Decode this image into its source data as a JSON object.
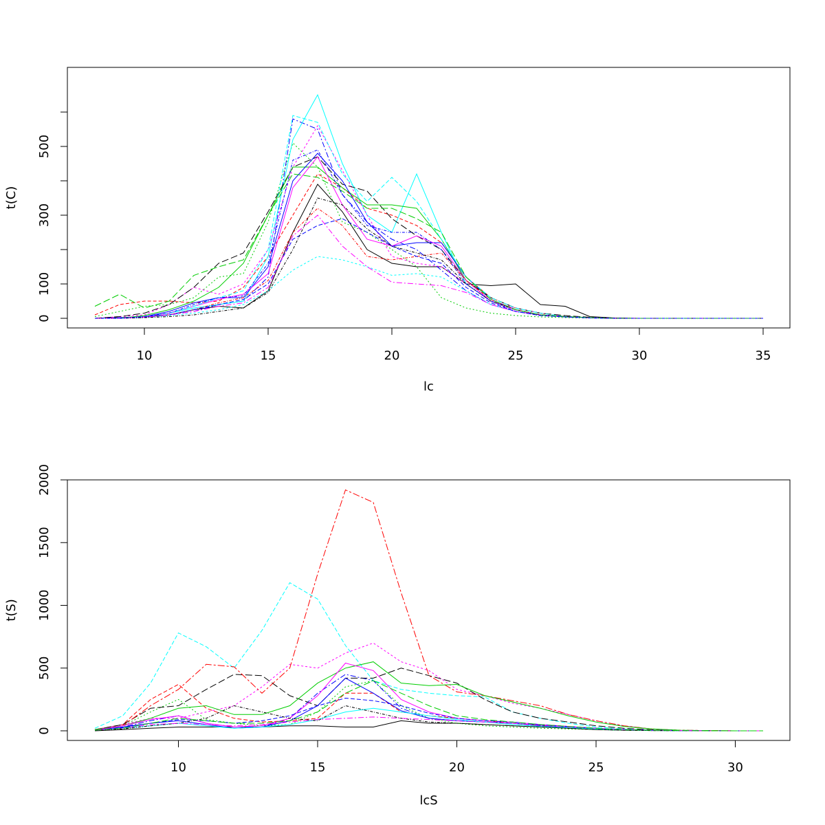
{
  "chart_data": [
    {
      "type": "line",
      "xlabel": "lc",
      "ylabel": "t(C)",
      "xlim": [
        8,
        35
      ],
      "ylim": [
        0,
        650
      ],
      "x_ticks": [
        "10",
        "15",
        "20",
        "25",
        "30",
        "35"
      ],
      "y_ticks": [
        "0",
        "100",
        "300",
        "500"
      ],
      "grid": false,
      "x": [
        8,
        9,
        10,
        11,
        12,
        13,
        14,
        15,
        16,
        17,
        18,
        19,
        20,
        21,
        22,
        23,
        24,
        25,
        26,
        27,
        28,
        29,
        30,
        31,
        32,
        33,
        34,
        35
      ],
      "series": [
        {
          "color": "#000000",
          "dash": "solid",
          "values": [
            0,
            2,
            5,
            10,
            25,
            35,
            30,
            80,
            250,
            390,
            310,
            200,
            160,
            150,
            150,
            100,
            95,
            100,
            40,
            35,
            5,
            1,
            0,
            0,
            0,
            0,
            0,
            0
          ]
        },
        {
          "color": "#ff0000",
          "dash": "5,3",
          "values": [
            10,
            40,
            50,
            50,
            45,
            50,
            90,
            180,
            300,
            420,
            380,
            320,
            300,
            270,
            220,
            120,
            60,
            30,
            15,
            5,
            2,
            0,
            0,
            0,
            0,
            0,
            0,
            0
          ]
        },
        {
          "color": "#00cd00",
          "dash": "2,3",
          "values": [
            5,
            20,
            35,
            40,
            60,
            120,
            130,
            280,
            510,
            440,
            280,
            250,
            200,
            150,
            60,
            30,
            15,
            8,
            4,
            2,
            1,
            0,
            0,
            0,
            0,
            0,
            0,
            0
          ]
        },
        {
          "color": "#0000ff",
          "dash": "8,3,2,3",
          "values": [
            0,
            2,
            5,
            10,
            20,
            40,
            50,
            120,
            580,
            550,
            360,
            280,
            230,
            200,
            140,
            80,
            40,
            20,
            10,
            5,
            2,
            0,
            0,
            0,
            0,
            0,
            0,
            0
          ]
        },
        {
          "color": "#00ffff",
          "dash": "solid",
          "values": [
            0,
            0,
            5,
            15,
            30,
            40,
            50,
            180,
            520,
            650,
            450,
            300,
            250,
            420,
            250,
            100,
            50,
            25,
            10,
            5,
            2,
            0,
            0,
            0,
            0,
            0,
            0,
            0
          ]
        },
        {
          "color": "#ff00ff",
          "dash": "3,3",
          "values": [
            0,
            5,
            10,
            40,
            90,
            70,
            100,
            200,
            440,
            560,
            430,
            300,
            180,
            160,
            150,
            100,
            50,
            30,
            15,
            5,
            2,
            0,
            0,
            0,
            0,
            0,
            0,
            0
          ]
        },
        {
          "color": "#000000",
          "dash": "10,4",
          "values": [
            0,
            5,
            15,
            40,
            90,
            160,
            190,
            310,
            440,
            470,
            390,
            370,
            290,
            240,
            200,
            110,
            60,
            30,
            15,
            8,
            3,
            0,
            0,
            0,
            0,
            0,
            0,
            0
          ]
        },
        {
          "color": "#00cd00",
          "dash": "solid",
          "values": [
            0,
            0,
            8,
            25,
            50,
            90,
            160,
            300,
            440,
            440,
            380,
            330,
            330,
            320,
            230,
            110,
            50,
            25,
            10,
            5,
            2,
            0,
            0,
            0,
            0,
            0,
            0,
            0
          ]
        },
        {
          "color": "#0000ff",
          "dash": "solid",
          "values": [
            0,
            0,
            5,
            20,
            45,
            60,
            60,
            150,
            400,
            480,
            400,
            280,
            210,
            220,
            220,
            120,
            55,
            25,
            10,
            5,
            2,
            0,
            0,
            0,
            0,
            0,
            0,
            0
          ]
        },
        {
          "color": "#00ffff",
          "dash": "3,3",
          "values": [
            0,
            0,
            2,
            8,
            15,
            25,
            40,
            80,
            140,
            180,
            170,
            150,
            125,
            130,
            120,
            80,
            40,
            20,
            10,
            5,
            2,
            0,
            0,
            0,
            0,
            0,
            0,
            0
          ]
        },
        {
          "color": "#ff00ff",
          "dash": "solid",
          "values": [
            0,
            0,
            5,
            15,
            35,
            55,
            70,
            130,
            380,
            470,
            330,
            230,
            210,
            240,
            210,
            110,
            50,
            25,
            10,
            5,
            2,
            0,
            0,
            0,
            0,
            0,
            0,
            0
          ]
        },
        {
          "color": "#ff0000",
          "dash": "4,2,1,2",
          "values": [
            0,
            0,
            3,
            10,
            25,
            45,
            60,
            110,
            250,
            320,
            270,
            180,
            170,
            180,
            190,
            110,
            55,
            25,
            10,
            5,
            2,
            0,
            0,
            0,
            0,
            0,
            0,
            0
          ]
        },
        {
          "color": "#0000ff",
          "dash": "6,3",
          "values": [
            0,
            0,
            3,
            10,
            25,
            40,
            55,
            100,
            230,
            270,
            290,
            250,
            210,
            180,
            160,
            90,
            45,
            20,
            8,
            4,
            1,
            0,
            0,
            0,
            0,
            0,
            0,
            0
          ]
        },
        {
          "color": "#00ffff",
          "dash": "6,3",
          "values": [
            0,
            0,
            5,
            15,
            35,
            60,
            80,
            200,
            590,
            570,
            420,
            340,
            410,
            340,
            230,
            120,
            60,
            30,
            15,
            5,
            2,
            0,
            0,
            0,
            0,
            0,
            0,
            0
          ]
        },
        {
          "color": "#ff00ff",
          "dash": "8,3,2,3",
          "values": [
            0,
            0,
            3,
            10,
            20,
            35,
            45,
            90,
            240,
            300,
            210,
            150,
            105,
            100,
            95,
            75,
            40,
            20,
            10,
            5,
            2,
            0,
            0,
            0,
            0,
            0,
            0,
            0
          ]
        },
        {
          "color": "#000000",
          "dash": "4,2,1,2",
          "values": [
            0,
            0,
            2,
            5,
            10,
            20,
            30,
            75,
            200,
            350,
            330,
            260,
            210,
            190,
            170,
            100,
            50,
            25,
            10,
            5,
            2,
            0,
            0,
            0,
            0,
            0,
            0,
            0
          ]
        },
        {
          "color": "#00cd00",
          "dash": "10,4",
          "values": [
            35,
            70,
            30,
            50,
            125,
            150,
            170,
            300,
            420,
            410,
            370,
            320,
            320,
            290,
            250,
            120,
            55,
            25,
            10,
            5,
            2,
            0,
            0,
            0,
            0,
            0,
            0,
            0
          ]
        },
        {
          "color": "#0000ff",
          "dash": "4,2,1,2",
          "values": [
            0,
            0,
            5,
            15,
            40,
            60,
            65,
            160,
            460,
            490,
            360,
            270,
            250,
            250,
            200,
            100,
            50,
            20,
            8,
            4,
            1,
            0,
            0,
            0,
            0,
            0,
            0,
            0
          ]
        }
      ]
    },
    {
      "type": "line",
      "xlabel": "lcS",
      "ylabel": "t(S)",
      "xlim": [
        7,
        31
      ],
      "ylim": [
        0,
        2000
      ],
      "x_ticks": [
        "10",
        "15",
        "20",
        "25",
        "30"
      ],
      "y_ticks": [
        "0",
        "500",
        "1000",
        "1500",
        "2000"
      ],
      "grid": false,
      "x": [
        7,
        8,
        9,
        10,
        11,
        12,
        13,
        14,
        15,
        16,
        17,
        18,
        19,
        20,
        21,
        22,
        23,
        24,
        25,
        26,
        27,
        28,
        29,
        30,
        31
      ],
      "series": [
        {
          "color": "#000000",
          "dash": "solid",
          "values": [
            0,
            10,
            20,
            30,
            30,
            30,
            30,
            40,
            40,
            30,
            30,
            80,
            60,
            60,
            50,
            40,
            30,
            20,
            10,
            5,
            2,
            1,
            0,
            0,
            0
          ]
        },
        {
          "color": "#ff0000",
          "dash": "6,3",
          "values": [
            10,
            50,
            250,
            370,
            180,
            100,
            70,
            80,
            100,
            300,
            300,
            150,
            120,
            100,
            80,
            60,
            40,
            30,
            20,
            10,
            5,
            2,
            0,
            0,
            0
          ]
        },
        {
          "color": "#00cd00",
          "dash": "2,3",
          "values": [
            5,
            40,
            150,
            250,
            90,
            60,
            40,
            50,
            150,
            350,
            400,
            200,
            100,
            60,
            40,
            30,
            20,
            15,
            10,
            5,
            2,
            1,
            0,
            0,
            0
          ]
        },
        {
          "color": "#0000ff",
          "dash": "8,3,2,3",
          "values": [
            5,
            30,
            80,
            120,
            60,
            30,
            30,
            100,
            300,
            450,
            400,
            180,
            100,
            80,
            70,
            60,
            40,
            30,
            20,
            10,
            5,
            2,
            0,
            0,
            0
          ]
        },
        {
          "color": "#00ffff",
          "dash": "6,3",
          "values": [
            20,
            120,
            380,
            780,
            670,
            500,
            800,
            1180,
            1050,
            680,
            400,
            330,
            300,
            280,
            270,
            150,
            100,
            60,
            30,
            15,
            5,
            2,
            0,
            0,
            0
          ]
        },
        {
          "color": "#ff00ff",
          "dash": "3,3",
          "values": [
            10,
            50,
            100,
            100,
            150,
            200,
            350,
            530,
            500,
            620,
            700,
            550,
            480,
            330,
            280,
            220,
            180,
            130,
            80,
            40,
            15,
            5,
            2,
            0,
            0
          ]
        },
        {
          "color": "#000000",
          "dash": "10,4",
          "values": [
            10,
            50,
            180,
            200,
            330,
            450,
            440,
            280,
            200,
            420,
            420,
            500,
            440,
            380,
            250,
            150,
            100,
            70,
            40,
            20,
            8,
            3,
            1,
            0,
            0
          ]
        },
        {
          "color": "#ff0000",
          "dash": "10,3,3,3",
          "values": [
            10,
            40,
            200,
            330,
            530,
            510,
            300,
            500,
            1250,
            1920,
            1820,
            1100,
            440,
            310,
            280,
            240,
            200,
            130,
            80,
            40,
            15,
            5,
            2,
            0,
            0
          ]
        },
        {
          "color": "#00cd00",
          "dash": "solid",
          "values": [
            10,
            40,
            100,
            180,
            200,
            130,
            130,
            200,
            380,
            500,
            550,
            380,
            360,
            370,
            280,
            230,
            180,
            120,
            70,
            35,
            15,
            5,
            2,
            0,
            0
          ]
        },
        {
          "color": "#0000ff",
          "dash": "solid",
          "values": [
            5,
            30,
            60,
            80,
            50,
            20,
            30,
            80,
            200,
            420,
            300,
            160,
            100,
            80,
            70,
            60,
            45,
            30,
            20,
            10,
            5,
            2,
            0,
            0,
            0
          ]
        },
        {
          "color": "#ff00ff",
          "dash": "solid",
          "values": [
            5,
            40,
            90,
            120,
            60,
            30,
            40,
            100,
            280,
            540,
            480,
            250,
            150,
            100,
            80,
            70,
            50,
            35,
            20,
            10,
            5,
            2,
            0,
            0,
            0
          ]
        },
        {
          "color": "#00ffff",
          "dash": "solid",
          "values": [
            5,
            20,
            40,
            60,
            40,
            20,
            30,
            50,
            90,
            150,
            180,
            150,
            120,
            90,
            70,
            50,
            35,
            25,
            15,
            8,
            3,
            1,
            0,
            0,
            0
          ]
        },
        {
          "color": "#0000ff",
          "dash": "6,3",
          "values": [
            5,
            25,
            60,
            90,
            80,
            60,
            80,
            120,
            200,
            260,
            240,
            200,
            140,
            100,
            80,
            70,
            50,
            35,
            20,
            10,
            5,
            2,
            0,
            0,
            0
          ]
        },
        {
          "color": "#000000",
          "dash": "4,2,1,2",
          "values": [
            5,
            15,
            40,
            60,
            100,
            200,
            150,
            100,
            80,
            200,
            150,
            100,
            70,
            60,
            50,
            40,
            30,
            20,
            10,
            5,
            2,
            1,
            0,
            0,
            0
          ]
        },
        {
          "color": "#ff00ff",
          "dash": "8,3,2,3",
          "values": [
            5,
            20,
            50,
            60,
            50,
            40,
            50,
            70,
            90,
            100,
            110,
            100,
            90,
            80,
            70,
            60,
            45,
            30,
            20,
            10,
            5,
            2,
            0,
            0,
            0
          ]
        },
        {
          "color": "#00cd00",
          "dash": "10,4",
          "values": [
            5,
            20,
            60,
            100,
            80,
            60,
            60,
            80,
            150,
            300,
            400,
            300,
            200,
            120,
            90,
            70,
            50,
            35,
            20,
            10,
            5,
            2,
            0,
            0,
            0
          ]
        }
      ]
    }
  ]
}
